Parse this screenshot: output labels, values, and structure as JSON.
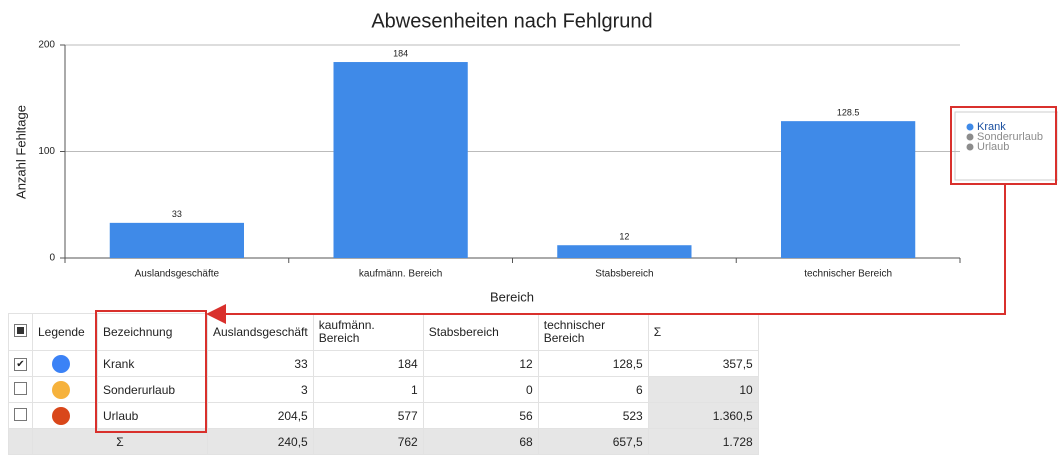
{
  "chart_data": {
    "type": "bar",
    "title": "Abwesenheiten nach Fehlgrund",
    "x_label": "Bereich",
    "y_label": "Anzahl Fehltage",
    "categories": [
      "Auslandsgeschäfte",
      "kaufmänn. Bereich",
      "Stabsbereich",
      "technischer Bereich"
    ],
    "series": [
      {
        "name": "Krank",
        "color": "#3f8ae8",
        "values": [
          33,
          184,
          12,
          128.5
        ]
      }
    ],
    "ylim": [
      0,
      200
    ],
    "yticks": [
      0,
      100,
      200
    ],
    "grid": true,
    "legend_position": "right",
    "inactive_legend": [
      {
        "name": "Sonderurlaub"
      },
      {
        "name": "Urlaub"
      }
    ],
    "inactive_color": "#8c8c8c"
  },
  "table": {
    "columns": [
      "Legende",
      "Bezeichnung",
      "Auslandsgeschäft",
      "kaufmänn. Bereich",
      "Stabsbereich",
      "technischer Bereich",
      "Σ"
    ],
    "rows": [
      {
        "checked": true,
        "color": "#3b82f6",
        "cells": [
          "Krank",
          "33",
          "184",
          "12",
          "128,5",
          "357,5"
        ]
      },
      {
        "checked": false,
        "color": "#f6b23c",
        "cells": [
          "Sonderurlaub",
          "3",
          "1",
          "0",
          "6",
          "10"
        ]
      },
      {
        "checked": false,
        "color": "#d9471a",
        "cells": [
          "Urlaub",
          "204,5",
          "577",
          "56",
          "523",
          "1.360,5"
        ]
      }
    ],
    "footer": [
      "Σ",
      "240,5",
      "762",
      "68",
      "657,5",
      "1.728"
    ]
  }
}
